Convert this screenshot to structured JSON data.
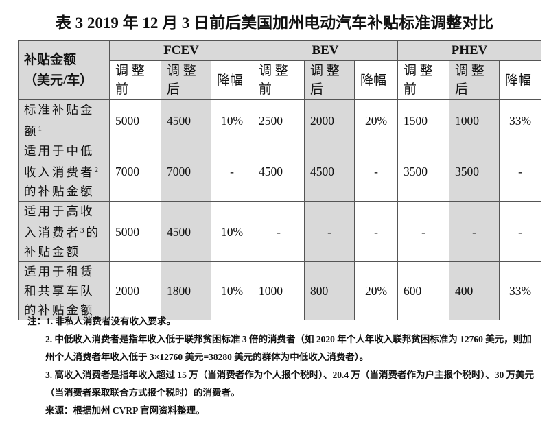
{
  "title": "表 3 2019 年 12 月 3 日前后美国加州电动汽车补贴标准调整对比",
  "table": {
    "corner": [
      "补贴金额",
      "（美元/车）"
    ],
    "groups": [
      "FCEV",
      "BEV",
      "PHEV"
    ],
    "subheaders": [
      "调 整 前",
      "调 整 后",
      "降幅"
    ],
    "rows": [
      {
        "label": "标准补贴金额",
        "sup": "1",
        "values": [
          "5000",
          "4500",
          "10%",
          "2500",
          "2000",
          "20%",
          "1500",
          "1000",
          "33%"
        ]
      },
      {
        "label": "适用于中低收入消费者",
        "sup": "2",
        "label_tail": "的补贴金额",
        "values": [
          "7000",
          "7000",
          "-",
          "4500",
          "4500",
          "-",
          "3500",
          "3500",
          "-"
        ]
      },
      {
        "label": "适用于高收入消费者",
        "sup": "3",
        "label_tail": "的补贴金额",
        "values": [
          "5000",
          "4500",
          "10%",
          "-",
          "-",
          "-",
          "-",
          "-",
          "-"
        ]
      },
      {
        "label": "适用于租赁和共享车队的补贴金额",
        "sup": "",
        "values": [
          "2000",
          "1800",
          "10%",
          "1000",
          "800",
          "20%",
          "600",
          "400",
          "33%"
        ]
      }
    ]
  },
  "notes": [
    "注：1. 非私人消费者没有收入要求。",
    "2. 中低收入消费者是指年收入低于联邦贫困标准 3 倍的消费者（如 2020 年个人年收入联邦贫困标准为 12760 美元，则加州个人消费者年收入低于 3×12760 美元=38280 美元的群体为中低收入消费者）。",
    "3. 高收入消费者是指年收入超过 15 万（当消费者作为个人报个税时）、20.4 万（当消费者作为户主报个税时）、30 万美元（当消费者采取联合方式报个税时）的消费者。",
    "来源：根据加州 CVRP 官网资料整理。"
  ]
}
